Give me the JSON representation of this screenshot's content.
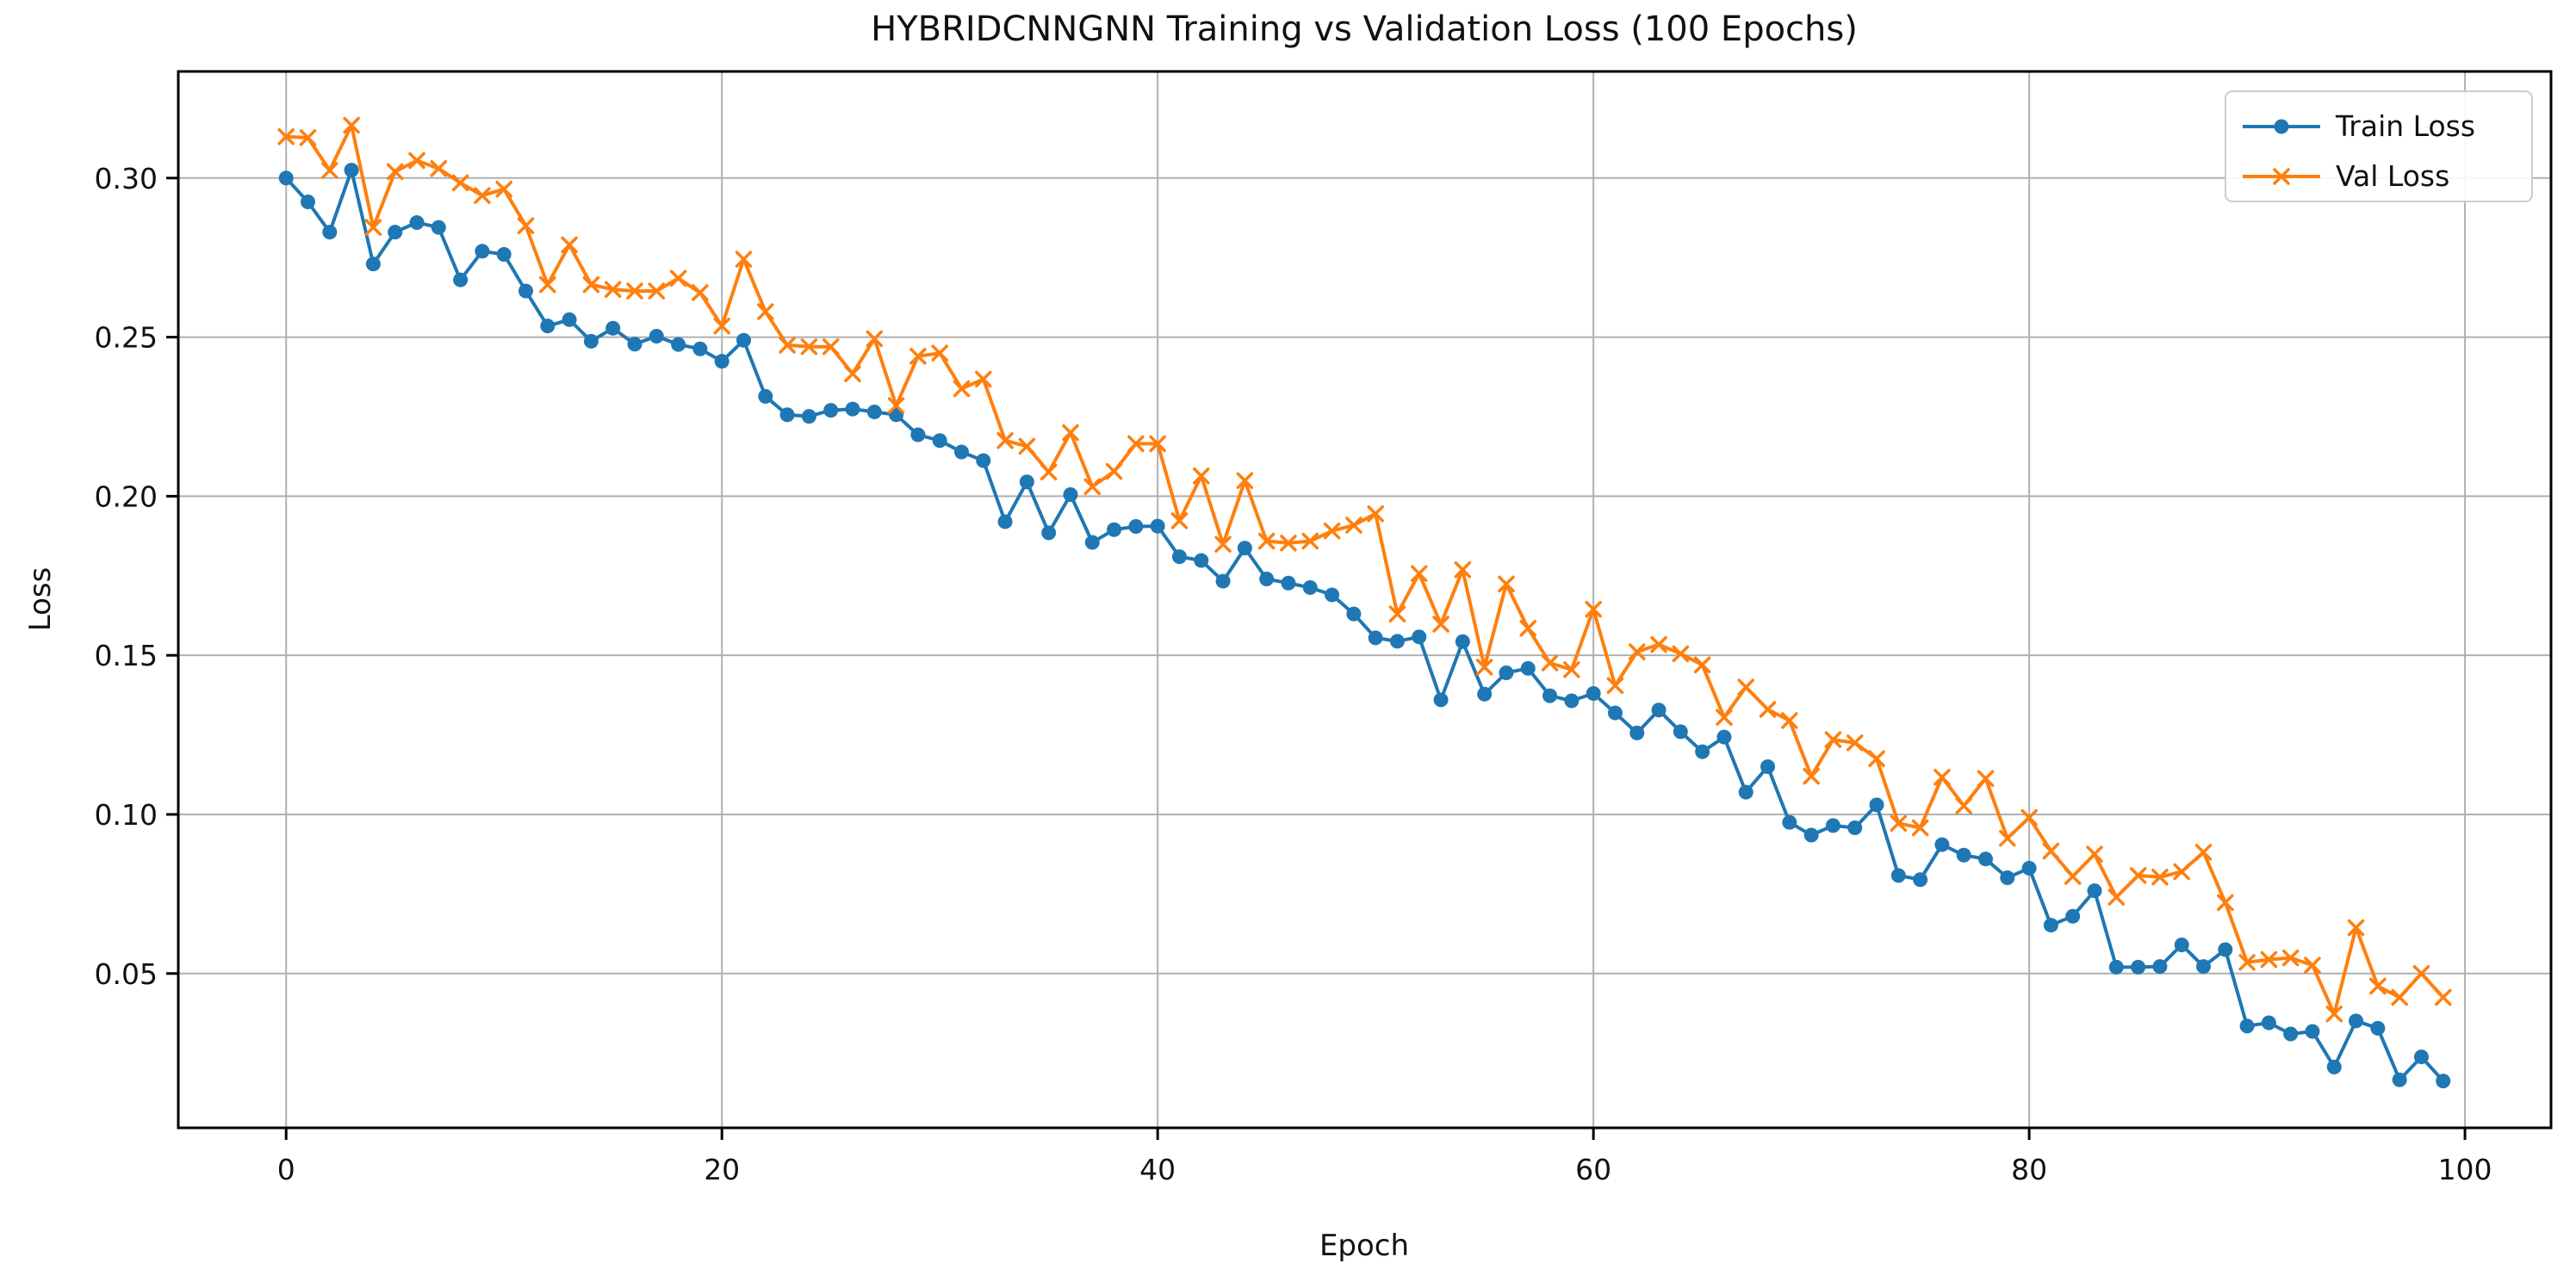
{
  "chart_data": {
    "type": "line",
    "title": "HYBRIDCNNGNN Training vs Validation Loss (100 Epochs)",
    "xlabel": "Epoch",
    "ylabel": "Loss",
    "x_ticks": [
      0,
      20,
      40,
      60,
      80,
      100
    ],
    "y_ticks": [
      0.05,
      0.1,
      0.15,
      0.2,
      0.25,
      0.3
    ],
    "xlim": [
      -4.95,
      103.95
    ],
    "ylim": [
      0.0015,
      0.3335
    ],
    "grid": true,
    "background": "#ffffff",
    "grid_color": "#b0b0b0",
    "spine_color": "#000000",
    "legend": {
      "position": "upper right",
      "entries": [
        "Train Loss",
        "Val Loss"
      ]
    },
    "x": [
      0,
      1,
      2,
      3,
      4,
      5,
      6,
      7,
      8,
      9,
      10,
      11,
      12,
      13,
      14,
      15,
      16,
      17,
      18,
      19,
      20,
      21,
      22,
      23,
      24,
      25,
      26,
      27,
      28,
      29,
      30,
      31,
      32,
      33,
      34,
      35,
      36,
      37,
      38,
      39,
      40,
      41,
      42,
      43,
      44,
      45,
      46,
      47,
      48,
      49,
      50,
      51,
      52,
      53,
      54,
      55,
      56,
      57,
      58,
      59,
      60,
      61,
      62,
      63,
      64,
      65,
      66,
      67,
      68,
      69,
      70,
      71,
      72,
      73,
      74,
      75,
      76,
      77,
      78,
      79,
      80,
      81,
      82,
      83,
      84,
      85,
      86,
      87,
      88,
      89,
      90,
      91,
      92,
      93,
      94,
      95,
      96,
      97,
      98,
      99
    ],
    "series": [
      {
        "name": "Train Loss",
        "color": "#1f77b4",
        "marker": "circle",
        "values": [
          0.3,
          0.2925,
          0.283,
          0.3025,
          0.273,
          0.283,
          0.286,
          0.2845,
          0.268,
          0.277,
          0.276,
          0.2645,
          0.2535,
          0.2555,
          0.2487,
          0.2528,
          0.2478,
          0.2503,
          0.2477,
          0.2463,
          0.2424,
          0.249,
          0.2314,
          0.2256,
          0.2251,
          0.227,
          0.2274,
          0.2265,
          0.2256,
          0.2193,
          0.2175,
          0.2139,
          0.2112,
          0.192,
          0.2045,
          0.1885,
          0.2005,
          0.1855,
          0.1895,
          0.1905,
          0.1906,
          0.181,
          0.1798,
          0.1733,
          0.1837,
          0.174,
          0.1727,
          0.1713,
          0.169,
          0.163,
          0.1555,
          0.1544,
          0.1558,
          0.136,
          0.1543,
          0.1378,
          0.1445,
          0.1459,
          0.1373,
          0.1357,
          0.138,
          0.1319,
          0.1256,
          0.1328,
          0.126,
          0.1197,
          0.1243,
          0.107,
          0.115,
          0.0975,
          0.0935,
          0.0965,
          0.0958,
          0.103,
          0.0808,
          0.0795,
          0.0905,
          0.0872,
          0.086,
          0.0801,
          0.0831,
          0.0652,
          0.068,
          0.076,
          0.052,
          0.052,
          0.0522,
          0.059,
          0.0522,
          0.0575,
          0.0335,
          0.0345,
          0.031,
          0.0318,
          0.0206,
          0.0351,
          0.0328,
          0.0166,
          0.0238,
          0.0162
        ]
      },
      {
        "name": "Val Loss",
        "color": "#ff7f0e",
        "marker": "x",
        "values": [
          0.313,
          0.3127,
          0.3024,
          0.3166,
          0.2845,
          0.302,
          0.3055,
          0.303,
          0.2985,
          0.2945,
          0.2965,
          0.285,
          0.2665,
          0.279,
          0.2665,
          0.265,
          0.2645,
          0.2645,
          0.2685,
          0.264,
          0.2535,
          0.2745,
          0.258,
          0.2475,
          0.247,
          0.247,
          0.2385,
          0.2495,
          0.2285,
          0.244,
          0.245,
          0.2338,
          0.2368,
          0.2175,
          0.2157,
          0.2076,
          0.22,
          0.203,
          0.2078,
          0.2165,
          0.2165,
          0.1923,
          0.2064,
          0.1849,
          0.2049,
          0.1859,
          0.1853,
          0.1859,
          0.1891,
          0.1909,
          0.1945,
          0.163,
          0.1757,
          0.1598,
          0.1769,
          0.1463,
          0.1724,
          0.1585,
          0.1476,
          0.1455,
          0.1645,
          0.1405,
          0.1511,
          0.1534,
          0.1505,
          0.147,
          0.1305,
          0.14,
          0.133,
          0.1295,
          0.112,
          0.1235,
          0.1225,
          0.1175,
          0.0972,
          0.0958,
          0.1117,
          0.1027,
          0.1113,
          0.0925,
          0.099,
          0.0885,
          0.0805,
          0.0875,
          0.074,
          0.0808,
          0.0803,
          0.082,
          0.0881,
          0.0723,
          0.0535,
          0.0544,
          0.0549,
          0.0526,
          0.0373,
          0.0644,
          0.046,
          0.0425,
          0.05,
          0.0425
        ]
      }
    ]
  }
}
